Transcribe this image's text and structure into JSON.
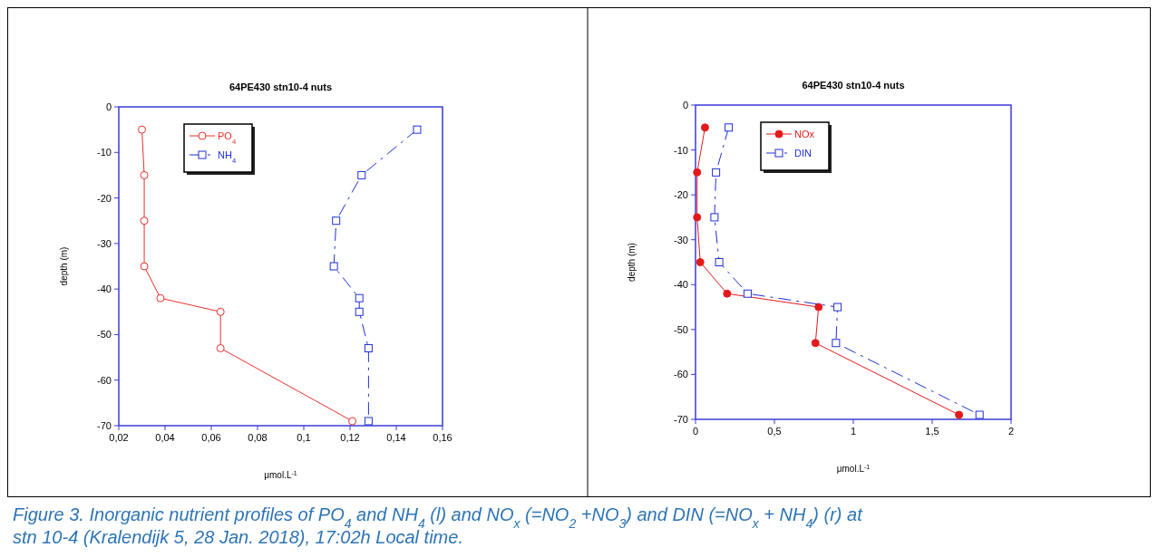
{
  "chart_data": [
    {
      "type": "line",
      "title": "64PE430 stn10-4 nuts",
      "xlabel": "μmol.L$^{-1}$",
      "ylabel": "depth (m)",
      "xlim": [
        0.02,
        0.16
      ],
      "ylim": [
        -70,
        0
      ],
      "xticks": [
        {
          "value": 0.02,
          "label": "0,02"
        },
        {
          "value": 0.04,
          "label": "0,04"
        },
        {
          "value": 0.06,
          "label": "0,06"
        },
        {
          "value": 0.08,
          "label": "0,08"
        },
        {
          "value": 0.1,
          "label": "0,1"
        },
        {
          "value": 0.12,
          "label": "0,12"
        },
        {
          "value": 0.14,
          "label": "0,14"
        },
        {
          "value": 0.16,
          "label": "0,16"
        }
      ],
      "yticks": [
        0,
        -10,
        -20,
        -30,
        -40,
        -50,
        -60,
        -70
      ],
      "grid": false,
      "legend": "top left",
      "series": [
        {
          "name": "PO$_{4}$",
          "color": "#e8302a",
          "marker": "circle",
          "line_style": "solid",
          "x": [
            0.03,
            0.031,
            0.031,
            0.031,
            0.038,
            0.064,
            0.064,
            0.121
          ],
          "values": [
            -5,
            -15,
            -25,
            -35,
            -42,
            -45,
            -53,
            -69
          ]
        },
        {
          "name": "NH$_{4}$",
          "color": "#1f2fd6",
          "marker": "square",
          "line_style": "dashed",
          "x": [
            0.149,
            0.125,
            0.114,
            0.113,
            0.124,
            0.124,
            0.128,
            0.128
          ],
          "values": [
            -5,
            -15,
            -25,
            -35,
            -42,
            -45,
            -53,
            -69
          ]
        }
      ]
    },
    {
      "type": "line",
      "title": "64PE430 stn10-4 nuts",
      "xlabel": "μmol.L$^{-1}$",
      "ylabel": "depth (m)",
      "xlim": [
        0,
        2
      ],
      "ylim": [
        -70,
        0
      ],
      "xticks": [
        0,
        {
          "value": 0.5,
          "label": "0,5"
        },
        1,
        {
          "value": 1.5,
          "label": "1,5"
        },
        2
      ],
      "yticks": [
        0,
        -10,
        -20,
        -30,
        -40,
        -50,
        -60,
        -70
      ],
      "grid": false,
      "legend": "top left",
      "annotations": [
        "Figure 3. Inorganic nutrient profiles of PO$_{4}$ and NH$_{4}$ (l) and NO$_{x}$ (=NO$_{2}$ +NO$_{3}$) and DIN (=NO$_{x}$ + NH$_{4}$) (r) at stn 10-4 (Kralendijk 5, 28 Jan. 2018), 17:02h Local time."
      ],
      "series": [
        {
          "name": "NOx",
          "color": "#e31a1c",
          "marker": "circle",
          "line_style": "solid",
          "x": [
            0.06,
            0.01,
            0.01,
            0.03,
            0.2,
            0.78,
            0.76,
            1.67
          ],
          "values": [
            -5,
            -15,
            -25,
            -35,
            -42,
            -45,
            -53,
            -69
          ]
        },
        {
          "name": "DIN",
          "color": "#1f2fd6",
          "marker": "square",
          "line_style": "dashed",
          "x": [
            0.21,
            0.13,
            0.12,
            0.15,
            0.33,
            0.9,
            0.89,
            1.8
          ],
          "values": [
            -5,
            -15,
            -25,
            -35,
            -42,
            -45,
            -53,
            -69
          ]
        }
      ]
    }
  ]
}
